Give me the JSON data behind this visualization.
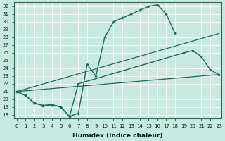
{
  "xlabel": "Humidex (Indice chaleur)",
  "bg_color": "#c8e8e0",
  "grid_color": "#b0d8d0",
  "line_color": "#1a6b5a",
  "xlim": [
    -0.3,
    23.3
  ],
  "ylim": [
    17.5,
    32.5
  ],
  "xticks": [
    0,
    1,
    2,
    3,
    4,
    5,
    6,
    7,
    8,
    9,
    10,
    11,
    12,
    13,
    14,
    15,
    16,
    17,
    18,
    19,
    20,
    21,
    22,
    23
  ],
  "yticks": [
    18,
    19,
    20,
    21,
    22,
    23,
    24,
    25,
    26,
    27,
    28,
    29,
    30,
    31,
    32
  ],
  "line1_x": [
    0,
    1,
    2,
    3,
    4,
    5,
    6,
    7,
    8,
    9,
    10,
    11,
    12,
    13,
    14,
    15,
    16,
    17,
    18
  ],
  "line1_y": [
    21.0,
    20.5,
    19.5,
    19.2,
    19.3,
    19.0,
    17.8,
    18.2,
    24.5,
    23.0,
    28.0,
    30.0,
    30.5,
    31.0,
    31.5,
    32.0,
    32.2,
    31.0,
    28.5
  ],
  "line2_x": [
    0,
    1,
    2,
    3,
    4,
    5,
    6,
    7,
    19,
    20,
    21,
    22,
    23
  ],
  "line2_y": [
    21.0,
    20.5,
    19.5,
    19.2,
    19.3,
    19.0,
    17.8,
    22.0,
    26.0,
    26.3,
    25.5,
    23.8,
    23.2
  ],
  "line3_x": [
    0,
    23
  ],
  "line3_y": [
    21.0,
    28.5
  ],
  "line4_x": [
    0,
    23
  ],
  "line4_y": [
    21.0,
    23.2
  ]
}
